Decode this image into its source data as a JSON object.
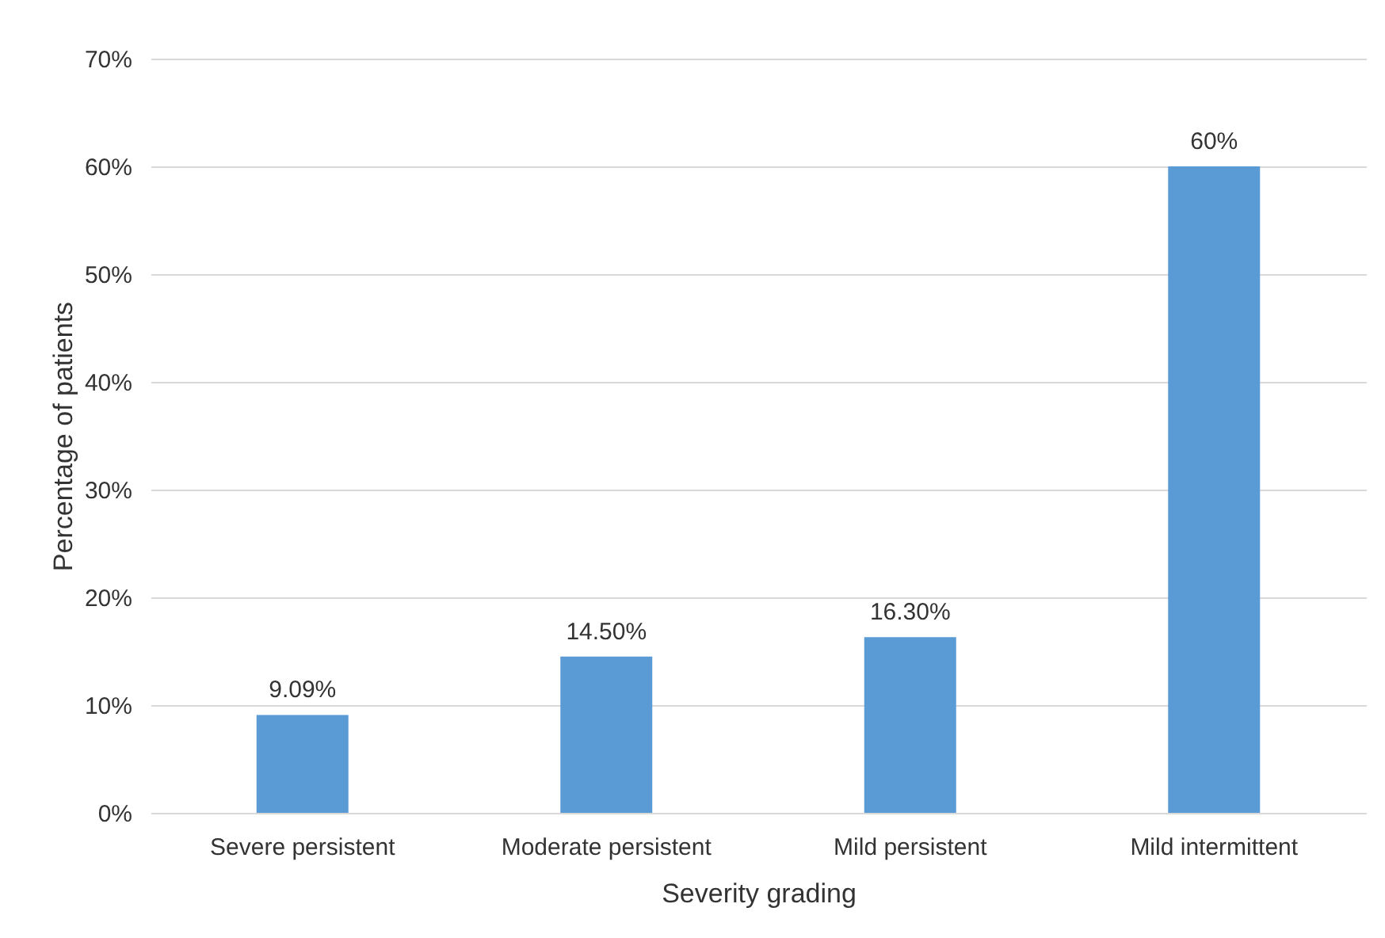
{
  "chart_data": {
    "type": "bar",
    "xlabel": "Severity grading",
    "ylabel": "Percentage of patients",
    "categories": [
      "Severe persistent",
      "Moderate persistent",
      "Mild persistent",
      "Mild intermittent"
    ],
    "values": [
      9.09,
      14.5,
      16.3,
      60
    ],
    "value_labels": [
      "9.09%",
      "14.50%",
      "16.30%",
      "60%"
    ],
    "color": "#5b9bd5",
    "ylim": [
      0,
      70
    ],
    "yticks": [
      {
        "value": 0,
        "label": "0%"
      },
      {
        "value": 10,
        "label": "10%"
      },
      {
        "value": 20,
        "label": "20%"
      },
      {
        "value": 30,
        "label": "30%"
      },
      {
        "value": 40,
        "label": "40%"
      },
      {
        "value": 50,
        "label": "50%"
      },
      {
        "value": 60,
        "label": "60%"
      },
      {
        "value": 70,
        "label": "70%"
      }
    ],
    "grid": "y"
  }
}
